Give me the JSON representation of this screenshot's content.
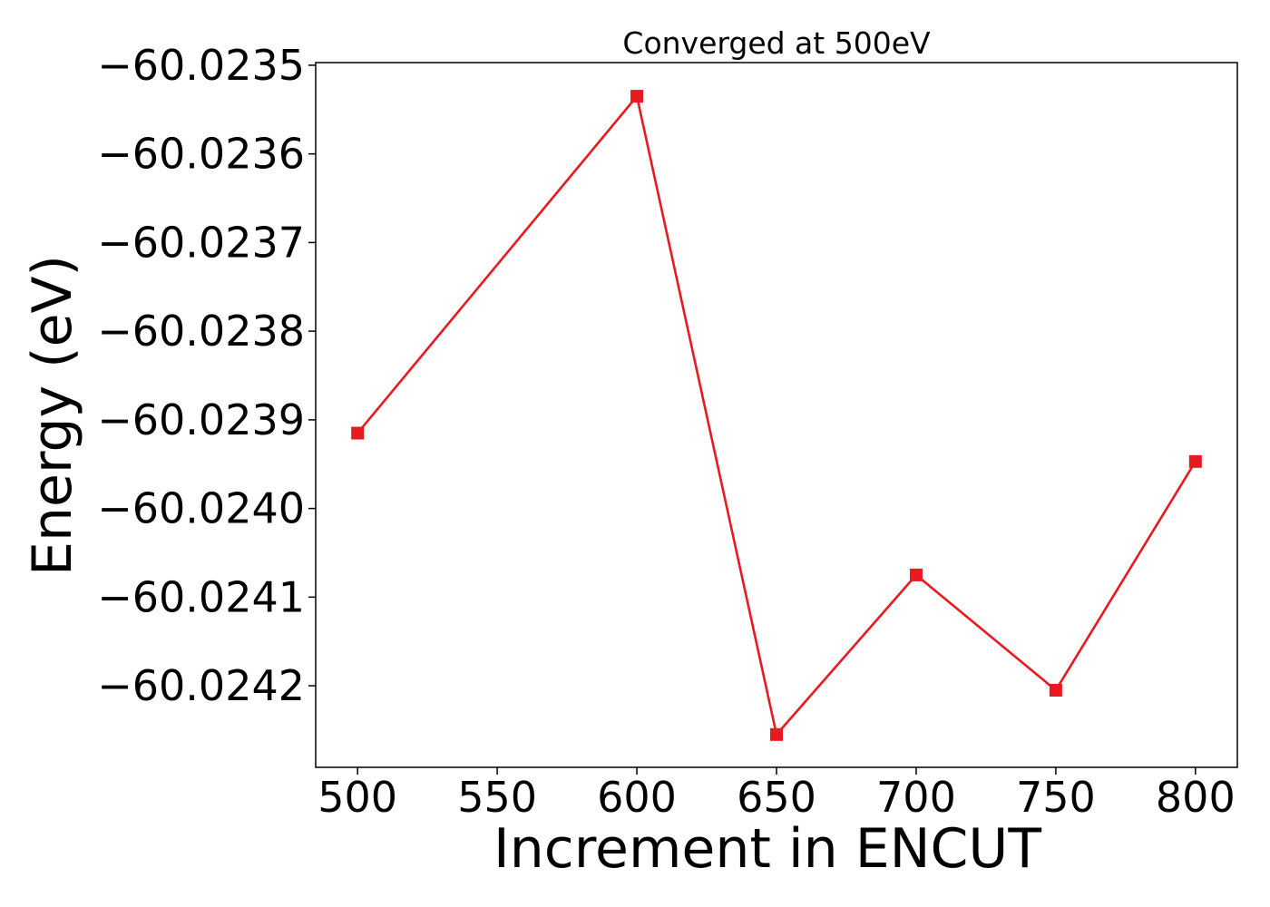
{
  "chart_data": {
    "type": "line",
    "title": "Converged at 500eV",
    "xlabel": "Increment in ENCUT",
    "ylabel": "Energy (eV)",
    "x": [
      500,
      600,
      650,
      700,
      750,
      800
    ],
    "series": [
      {
        "values": [
          -60.023915,
          -60.023535,
          -60.024255,
          -60.024075,
          -60.024205,
          -60.023947
        ],
        "color": "#e8191f",
        "marker": "square"
      }
    ],
    "xlim": [
      485,
      815
    ],
    "ylim": [
      -60.024292,
      -60.023497
    ],
    "xticks": [
      500,
      550,
      600,
      650,
      700,
      750,
      800
    ],
    "yticks": [
      -60.0235,
      -60.0236,
      -60.0237,
      -60.0238,
      -60.0239,
      -60.024,
      -60.0241,
      -60.0242
    ],
    "yticklabels": [
      "−60.0235",
      "−60.0236",
      "−60.0237",
      "−60.0238",
      "−60.0239",
      "−60.0240",
      "−60.0241",
      "−60.0242"
    ],
    "grid": false,
    "legend": "none"
  }
}
